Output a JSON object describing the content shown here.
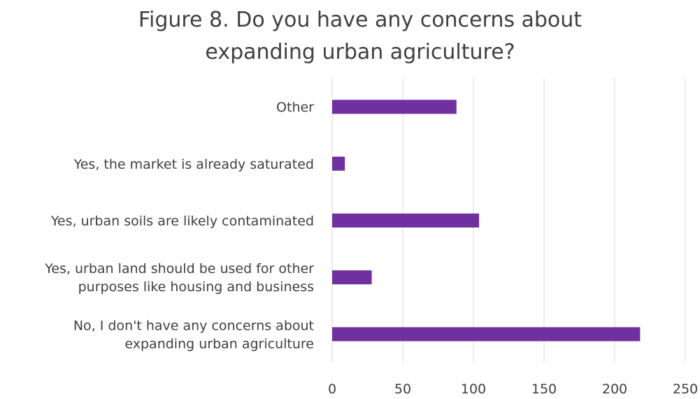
{
  "chart_data": {
    "type": "bar",
    "orientation": "horizontal",
    "title": "Figure 8.  Do you have any concerns about expanding urban agriculture?",
    "title_lines": [
      "Figure 8.  Do you have any concerns about",
      "expanding urban agriculture?"
    ],
    "categories": [
      "Other",
      "Yes, the market is already saturated",
      "Yes, urban soils are likely contaminated",
      "Yes, urban land should be used for other purposes like housing and business",
      "No, I don't have any concerns about expanding urban agriculture"
    ],
    "category_label_lines": [
      [
        "Other"
      ],
      [
        "Yes, the market is already saturated"
      ],
      [
        "Yes, urban soils are likely contaminated"
      ],
      [
        "Yes, urban land should be used for other",
        "purposes like housing and business"
      ],
      [
        "No, I don't have any concerns about",
        "expanding urban agriculture"
      ]
    ],
    "values": [
      88,
      9,
      104,
      28,
      218
    ],
    "xlim": [
      0,
      250
    ],
    "x_ticks": [
      0,
      50,
      100,
      150,
      200,
      250
    ],
    "grid": true,
    "legend": "none",
    "bar_color": "#7030a0",
    "gridline_color": "#d9d9d9",
    "text_color": "#404040"
  }
}
